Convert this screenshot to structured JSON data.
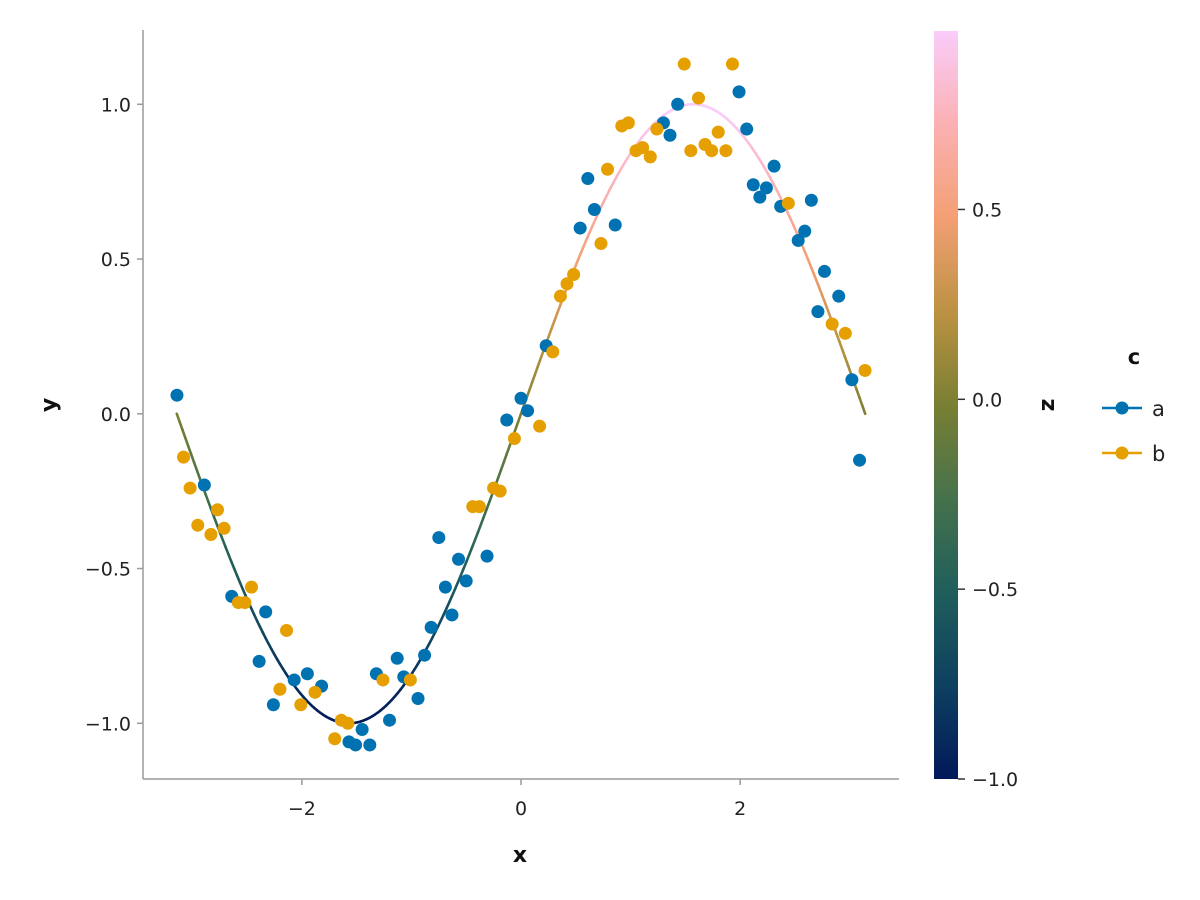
{
  "chart_data": {
    "type": "scatter",
    "xlabel": "x",
    "ylabel": "y",
    "xlim": [
      -3.45,
      3.45
    ],
    "ylim": [
      -1.18,
      1.24
    ],
    "x_ticks": [
      -2,
      0,
      2
    ],
    "x_tick_labels": [
      "−2",
      "0",
      "2"
    ],
    "y_ticks": [
      -1.0,
      -0.5,
      0.0,
      0.5,
      1.0
    ],
    "y_tick_labels": [
      "−1.0",
      "−0.5",
      "0.0",
      "0.5",
      "1.0"
    ],
    "grid": false,
    "colors": {
      "a": "#0072B2",
      "b": "#E69F00"
    },
    "legend": {
      "title": "c",
      "position": "right",
      "entries": [
        {
          "label": "a",
          "color": "#0072B2"
        },
        {
          "label": "b",
          "color": "#E69F00"
        }
      ]
    },
    "line": {
      "function": "sin",
      "x_range": [
        -3.1416,
        3.1416
      ],
      "color_by": "z",
      "colormap": "batlow"
    },
    "colorbar": {
      "label": "z",
      "range": [
        -1.0,
        0.97
      ],
      "ticks": [
        -1.0,
        -0.5,
        0.0,
        0.5
      ],
      "tick_labels": [
        "−1.0",
        "−0.5",
        "0.0",
        "0.5"
      ],
      "colors": [
        "#011959",
        "#0E4060",
        "#1F5E5B",
        "#45724C",
        "#797F33",
        "#BC9242",
        "#F39F74",
        "#FBB1B3",
        "#FACCFA"
      ]
    },
    "series": [
      {
        "name": "a",
        "points": [
          [
            -3.14,
            0.06
          ],
          [
            -2.89,
            -0.23
          ],
          [
            -2.64,
            -0.59
          ],
          [
            -2.39,
            -0.8
          ],
          [
            -2.33,
            -0.64
          ],
          [
            -2.26,
            -0.94
          ],
          [
            -2.07,
            -0.86
          ],
          [
            -1.95,
            -0.84
          ],
          [
            -1.82,
            -0.88
          ],
          [
            -1.57,
            -1.06
          ],
          [
            -1.51,
            -1.07
          ],
          [
            -1.45,
            -1.02
          ],
          [
            -1.38,
            -1.07
          ],
          [
            -1.32,
            -0.84
          ],
          [
            -1.2,
            -0.99
          ],
          [
            -1.13,
            -0.79
          ],
          [
            -1.07,
            -0.85
          ],
          [
            -0.94,
            -0.92
          ],
          [
            -0.88,
            -0.78
          ],
          [
            -0.82,
            -0.69
          ],
          [
            -0.75,
            -0.4
          ],
          [
            -0.69,
            -0.56
          ],
          [
            -0.63,
            -0.65
          ],
          [
            -0.57,
            -0.47
          ],
          [
            -0.5,
            -0.54
          ],
          [
            -0.31,
            -0.46
          ],
          [
            -0.13,
            -0.02
          ],
          [
            0.0,
            0.05
          ],
          [
            0.06,
            0.01
          ],
          [
            0.23,
            0.22
          ],
          [
            0.54,
            0.6
          ],
          [
            0.61,
            0.76
          ],
          [
            0.67,
            0.66
          ],
          [
            0.86,
            0.61
          ],
          [
            1.3,
            0.94
          ],
          [
            1.36,
            0.9
          ],
          [
            1.43,
            1.0
          ],
          [
            1.99,
            1.04
          ],
          [
            2.06,
            0.92
          ],
          [
            2.12,
            0.74
          ],
          [
            2.18,
            0.7
          ],
          [
            2.24,
            0.73
          ],
          [
            2.31,
            0.8
          ],
          [
            2.37,
            0.67
          ],
          [
            2.53,
            0.56
          ],
          [
            2.59,
            0.59
          ],
          [
            2.65,
            0.69
          ],
          [
            2.71,
            0.33
          ],
          [
            2.77,
            0.46
          ],
          [
            2.9,
            0.38
          ],
          [
            3.02,
            0.11
          ],
          [
            3.09,
            -0.15
          ]
        ]
      },
      {
        "name": "b",
        "points": [
          [
            -3.08,
            -0.14
          ],
          [
            -3.02,
            -0.24
          ],
          [
            -2.95,
            -0.36
          ],
          [
            -2.83,
            -0.39
          ],
          [
            -2.77,
            -0.31
          ],
          [
            -2.71,
            -0.37
          ],
          [
            -2.58,
            -0.61
          ],
          [
            -2.52,
            -0.61
          ],
          [
            -2.46,
            -0.56
          ],
          [
            -2.2,
            -0.89
          ],
          [
            -2.14,
            -0.7
          ],
          [
            -2.01,
            -0.94
          ],
          [
            -1.88,
            -0.9
          ],
          [
            -1.7,
            -1.05
          ],
          [
            -1.64,
            -0.99
          ],
          [
            -1.58,
            -1.0
          ],
          [
            -1.26,
            -0.86
          ],
          [
            -1.01,
            -0.86
          ],
          [
            -0.44,
            -0.3
          ],
          [
            -0.38,
            -0.3
          ],
          [
            -0.25,
            -0.24
          ],
          [
            -0.19,
            -0.25
          ],
          [
            -0.06,
            -0.08
          ],
          [
            0.17,
            -0.04
          ],
          [
            0.29,
            0.2
          ],
          [
            0.36,
            0.38
          ],
          [
            0.42,
            0.42
          ],
          [
            0.48,
            0.45
          ],
          [
            0.73,
            0.55
          ],
          [
            0.79,
            0.79
          ],
          [
            0.92,
            0.93
          ],
          [
            0.98,
            0.94
          ],
          [
            1.05,
            0.85
          ],
          [
            1.11,
            0.86
          ],
          [
            1.18,
            0.83
          ],
          [
            1.24,
            0.92
          ],
          [
            1.49,
            1.13
          ],
          [
            1.55,
            0.85
          ],
          [
            1.62,
            1.02
          ],
          [
            1.68,
            0.87
          ],
          [
            1.74,
            0.85
          ],
          [
            1.8,
            0.91
          ],
          [
            1.87,
            0.85
          ],
          [
            1.93,
            1.13
          ],
          [
            2.44,
            0.68
          ],
          [
            2.84,
            0.29
          ],
          [
            2.96,
            0.26
          ],
          [
            3.14,
            0.14
          ]
        ]
      }
    ]
  }
}
